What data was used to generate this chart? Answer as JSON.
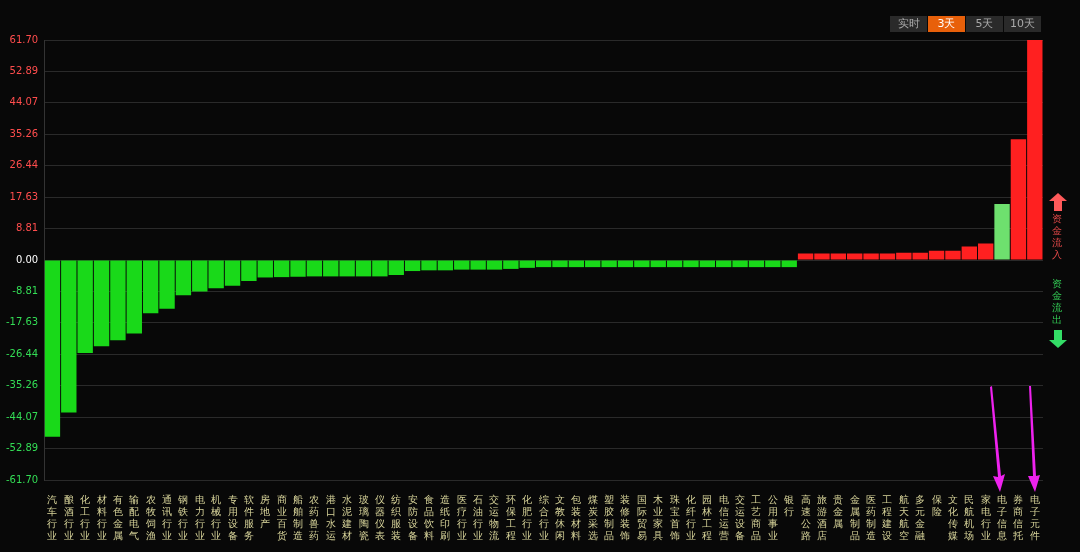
{
  "chart_data": {
    "type": "bar",
    "categories": [
      "汽车行业",
      "酿酒行业",
      "化工行业",
      "材料行业",
      "有色金属",
      "输配电气",
      "农牧饲渔",
      "通讯行业",
      "钢铁行业",
      "电力行业",
      "机械行业",
      "专用设备",
      "软件服务",
      "房地产",
      "商业百货",
      "船舶制造",
      "农药兽药",
      "港口水运",
      "水泥建材",
      "玻璃陶瓷",
      "仪器仪表",
      "纺织服装",
      "安防设备",
      "食品饮料",
      "造纸印刷",
      "医疗行业",
      "石油行业",
      "交运物流",
      "环保工程",
      "化肥行业",
      "综合行业",
      "文教休闲",
      "包装材料",
      "煤炭采选",
      "塑胶制品",
      "装修装饰",
      "国际贸易",
      "木业家具",
      "珠宝首饰",
      "化纤行业",
      "园林工程",
      "电信运营",
      "交运设备",
      "工艺商品",
      "公用事业",
      "银行",
      "高速公路",
      "旅游酒店",
      "贵金属",
      "金属制品",
      "医药制造",
      "工程建设",
      "航天航空",
      "多元金融",
      "保险",
      "文化传媒",
      "民航机场",
      "家电行业",
      "电子信息",
      "券商信托",
      "电子元件"
    ],
    "values": [
      -49.6,
      -42.8,
      -26.1,
      -24.2,
      -22.5,
      -20.6,
      -14.9,
      -13.7,
      -9.9,
      -8.8,
      -7.9,
      -7.2,
      -5.9,
      -4.9,
      -4.8,
      -4.7,
      -4.6,
      -4.6,
      -4.6,
      -4.6,
      -4.6,
      -4.2,
      -3.1,
      -2.9,
      -2.9,
      -2.7,
      -2.7,
      -2.7,
      -2.5,
      -2.2,
      -2.0,
      -2.0,
      -2.0,
      -2.0,
      -2.0,
      -2.0,
      -2.0,
      -2.0,
      -2.0,
      -2.0,
      -2.0,
      -2.0,
      -2.0,
      -2.0,
      -2.0,
      -2.0,
      1.8,
      1.8,
      1.8,
      1.8,
      1.8,
      1.8,
      2.0,
      2.0,
      2.6,
      2.6,
      3.8,
      4.6,
      15.7,
      33.9,
      61.7
    ],
    "colors": [
      "#19d919",
      "#19d919",
      "#19d919",
      "#19d919",
      "#19d919",
      "#19d919",
      "#19d919",
      "#19d919",
      "#19d919",
      "#19d919",
      "#19d919",
      "#19d919",
      "#19d919",
      "#19d919",
      "#19d919",
      "#19d919",
      "#19d919",
      "#19d919",
      "#19d919",
      "#19d919",
      "#19d919",
      "#19d919",
      "#19d919",
      "#19d919",
      "#19d919",
      "#19d919",
      "#19d919",
      "#19d919",
      "#19d919",
      "#19d919",
      "#19d919",
      "#19d919",
      "#19d919",
      "#19d919",
      "#19d919",
      "#19d919",
      "#19d919",
      "#19d919",
      "#19d919",
      "#19d919",
      "#19d919",
      "#19d919",
      "#19d919",
      "#19d919",
      "#19d919",
      "#19d919",
      "#ff2020",
      "#ff2020",
      "#ff2020",
      "#ff2020",
      "#ff2020",
      "#ff2020",
      "#ff2020",
      "#ff2020",
      "#ff2020",
      "#ff2020",
      "#ff2020",
      "#ff2020",
      "#6ee06e",
      "#ff2020",
      "#ff2020"
    ],
    "ylim": [
      -61.7,
      61.7
    ],
    "yticks": [
      {
        "value": 61.7,
        "label": "61.70"
      },
      {
        "value": 52.89,
        "label": "52.89"
      },
      {
        "value": 44.07,
        "label": "44.07"
      },
      {
        "value": 35.26,
        "label": "35.26"
      },
      {
        "value": 26.44,
        "label": "26.44"
      },
      {
        "value": 17.63,
        "label": "17.63"
      },
      {
        "value": 8.81,
        "label": "8.81"
      },
      {
        "value": 0,
        "label": "0.00"
      },
      {
        "value": -8.81,
        "label": "-8.81"
      },
      {
        "value": -17.63,
        "label": "-17.63"
      },
      {
        "value": -26.44,
        "label": "-26.44"
      },
      {
        "value": -35.26,
        "label": "-35.26"
      },
      {
        "value": -44.07,
        "label": "-44.07"
      },
      {
        "value": -52.89,
        "label": "-52.89"
      },
      {
        "value": -61.7,
        "label": "-61.70"
      }
    ],
    "grid": "y",
    "legend": false,
    "annotations": [
      "实时",
      "3天",
      "5天",
      "10天",
      "资金流入",
      "资金流出"
    ]
  }
}
